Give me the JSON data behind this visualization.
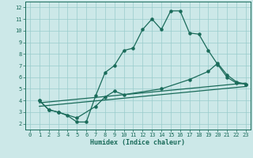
{
  "bg_color": "#cce8e8",
  "grid_color": "#99cccc",
  "line_color": "#1a6b5a",
  "xlabel": "Humidex (Indice chaleur)",
  "xlim": [
    -0.5,
    23.5
  ],
  "ylim": [
    1.5,
    12.5
  ],
  "xticks": [
    0,
    1,
    2,
    3,
    4,
    5,
    6,
    7,
    8,
    9,
    10,
    11,
    12,
    13,
    14,
    15,
    16,
    17,
    18,
    19,
    20,
    21,
    22,
    23
  ],
  "yticks": [
    2,
    3,
    4,
    5,
    6,
    7,
    8,
    9,
    10,
    11,
    12
  ],
  "line1_x": [
    1,
    2,
    3,
    4,
    5,
    6,
    7,
    8,
    9,
    10,
    11,
    12,
    13,
    14,
    15,
    16,
    17,
    18,
    19,
    20,
    21,
    22,
    23
  ],
  "line1_y": [
    4.0,
    3.2,
    3.0,
    2.7,
    2.15,
    2.15,
    4.4,
    6.4,
    7.0,
    8.3,
    8.5,
    10.1,
    11.0,
    10.1,
    11.7,
    11.7,
    9.8,
    9.7,
    8.3,
    7.1,
    6.0,
    5.5,
    5.4
  ],
  "line2_x": [
    1,
    2,
    3,
    5,
    7,
    8,
    9,
    10,
    14,
    17,
    19,
    20,
    21,
    22,
    23
  ],
  "line2_y": [
    4.0,
    3.2,
    3.0,
    2.5,
    3.5,
    4.3,
    4.8,
    4.5,
    5.0,
    5.8,
    6.5,
    7.2,
    6.2,
    5.6,
    5.4
  ],
  "line3_x": [
    1,
    23
  ],
  "line3_y": [
    3.8,
    5.5
  ],
  "line4_x": [
    1,
    23
  ],
  "line4_y": [
    3.5,
    5.2
  ]
}
